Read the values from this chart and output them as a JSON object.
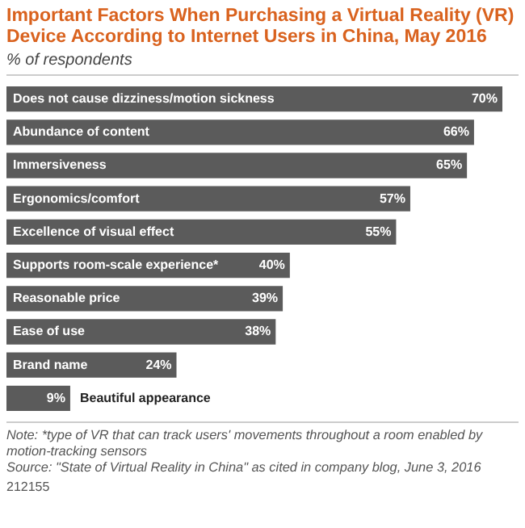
{
  "chart_data": {
    "type": "bar",
    "orientation": "horizontal",
    "title": "Important Factors When Purchasing a Virtual Reality (VR) Device According to Internet Users in China, May 2016",
    "subtitle": "% of respondents",
    "categories": [
      "Does not cause dizziness/motion sickness",
      "Abundance of content",
      "Immersiveness",
      "Ergonomics/comfort",
      "Excellence of visual effect",
      "Supports room-scale experience*",
      "Reasonable price",
      "Ease of use",
      "Brand name",
      "Beautiful appearance"
    ],
    "values": [
      70,
      66,
      65,
      57,
      55,
      40,
      39,
      38,
      24,
      9
    ],
    "value_labels": [
      "70%",
      "66%",
      "65%",
      "57%",
      "55%",
      "40%",
      "39%",
      "38%",
      "24%",
      "9%"
    ],
    "color": "#5b5b5b",
    "legend": false,
    "annotations": [
      "Note: *type of VR that can track users' movements throughout a room enabled by motion-tracking sensors",
      "Source: \"State of Virtual Reality in China\" as cited in company blog, June 3, 2016",
      "212155"
    ]
  }
}
